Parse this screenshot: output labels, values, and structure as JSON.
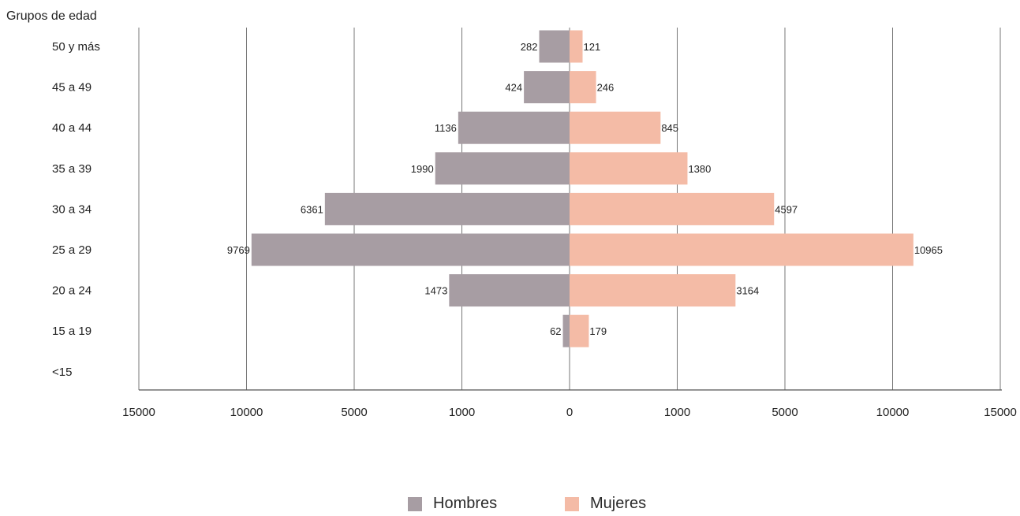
{
  "chart_data": {
    "type": "bar",
    "orientation": "horizontal-population-pyramid",
    "ylabel": "Grupos de edad",
    "categories": [
      "50 y más",
      "45 a 49",
      "40 a 44",
      "35 a 39",
      "30 a 34",
      "25 a 29",
      "20 a 24",
      "15 a 19",
      "<15"
    ],
    "series": [
      {
        "name": "Hombres",
        "side": "left",
        "color": "#a79da3",
        "values": [
          282,
          424,
          1136,
          1990,
          6361,
          9769,
          1473,
          62,
          null
        ]
      },
      {
        "name": "Mujeres",
        "side": "right",
        "color": "#f4bba6",
        "values": [
          121,
          246,
          845,
          1380,
          4597,
          10965,
          3164,
          179,
          null
        ]
      }
    ],
    "xticks_left": [
      "15000",
      "10000",
      "5000",
      "1000",
      "0"
    ],
    "xticks_right": [
      "1000",
      "5000",
      "10000",
      "15000"
    ],
    "axis_scale": "piecewise: 0, 1000, 5000, 10000, 15000 at equal spacing",
    "grid": "vertical lines at ticks",
    "legend_position": "bottom-center"
  }
}
